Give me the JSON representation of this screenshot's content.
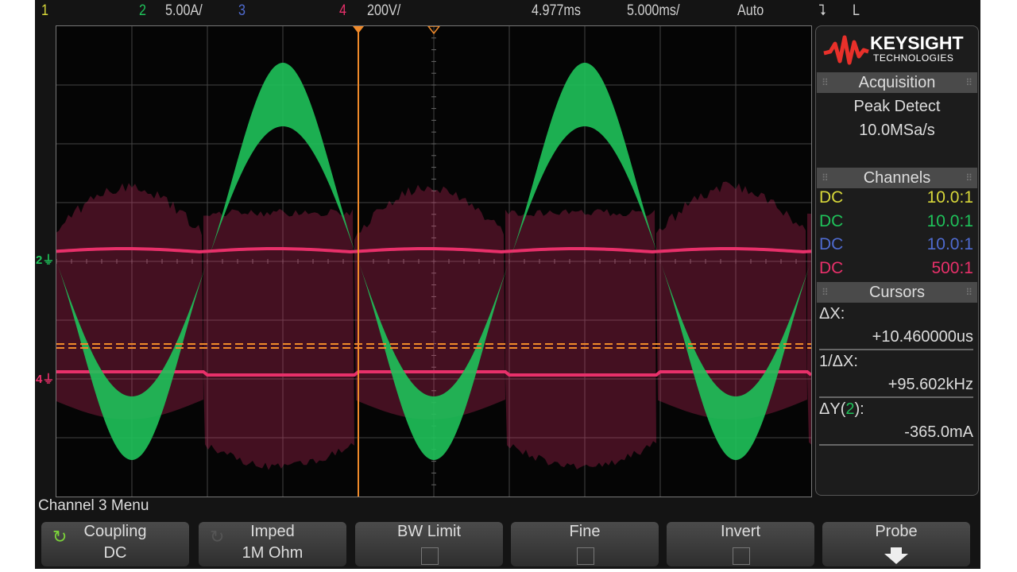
{
  "top_bar": {
    "ch1": "1",
    "ch2": "2",
    "ch2_scale": "5.00A/",
    "ch3": "3",
    "ch4": "4",
    "ch4_scale": "200V/",
    "time_delay": "4.977ms",
    "time_scale": "5.000ms/",
    "trigger_mode": "Auto",
    "trigger_slope": "⮧",
    "trigger_source": "L"
  },
  "colors": {
    "ch1": "#d8d83a",
    "ch2": "#1fc25a",
    "ch3": "#4f6bd0",
    "ch4": "#e8306a",
    "cursor": "#f08a2a",
    "brand": "#e8302a"
  },
  "markers": {
    "ch2": "2",
    "ch4": "4"
  },
  "panel": {
    "brand": "KEYSIGHT",
    "brand_sub": "TECHNOLOGIES",
    "acquisition": {
      "title": "Acquisition",
      "mode": "Peak Detect",
      "rate": "10.0MSa/s"
    },
    "channels": {
      "title": "Channels",
      "rows": [
        {
          "coupling": "DC",
          "probe": "10.0:1"
        },
        {
          "coupling": "DC",
          "probe": "10.0:1"
        },
        {
          "coupling": "DC",
          "probe": "10.0:1"
        },
        {
          "coupling": "DC",
          "probe": "500:1"
        }
      ]
    },
    "cursors": {
      "title": "Cursors",
      "dx_label": "ΔX:",
      "dx": "+10.460000us",
      "inv_dx_label": "1/ΔX:",
      "inv_dx": "+95.602kHz",
      "dy_label_prefix": "ΔY(",
      "dy_channel": "2",
      "dy_label_suffix": "):",
      "dy": "-365.0mA"
    }
  },
  "menu": {
    "title": "Channel 3 Menu",
    "softkeys": [
      {
        "label": "Coupling",
        "value": "DC",
        "icon": "rotate-icon"
      },
      {
        "label": "Imped",
        "value": "1M Ohm",
        "icon": "rotate-icon"
      },
      {
        "label": "BW Limit",
        "checked": false
      },
      {
        "label": "Fine",
        "checked": false
      },
      {
        "label": "Invert",
        "checked": false
      },
      {
        "label": "Probe",
        "icon": "arrow-down-icon"
      }
    ]
  }
}
